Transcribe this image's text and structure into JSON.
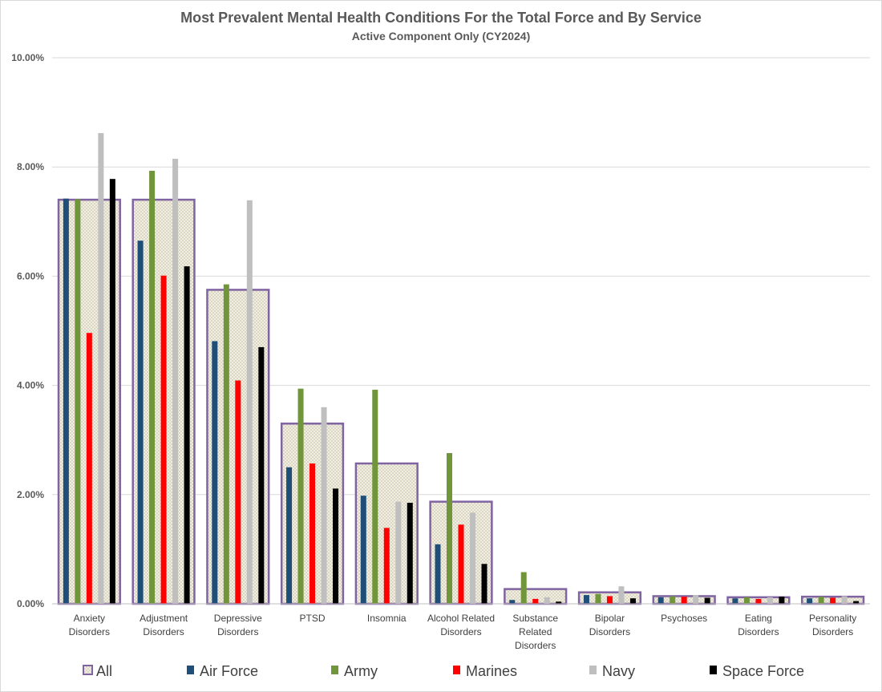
{
  "chart_data": {
    "type": "bar",
    "title": "Most Prevalent Mental Health Conditions For the Total Force and By Service",
    "subtitle": "Active Component Only (CY2024)",
    "categories": [
      [
        "Anxiety",
        "Disorders"
      ],
      [
        "Adjustment",
        "Disorders"
      ],
      [
        "Depressive",
        "Disorders"
      ],
      [
        "PTSD"
      ],
      [
        "Insomnia"
      ],
      [
        "Alcohol Related",
        "Disorders"
      ],
      [
        "Substance",
        "Related",
        "Disorders"
      ],
      [
        "Bipolar",
        "Disorders"
      ],
      [
        "Psychoses"
      ],
      [
        "Eating",
        "Disorders"
      ],
      [
        "Personality",
        "Disorders"
      ]
    ],
    "y_ticks": [
      "0.00%",
      "2.00%",
      "4.00%",
      "6.00%",
      "8.00%",
      "10.00%"
    ],
    "ylim": [
      0,
      10
    ],
    "grid": true,
    "legend_position": "bottom",
    "total": {
      "name": "All",
      "color": "#8064a2",
      "values": [
        7.4,
        7.4,
        5.75,
        3.3,
        2.57,
        1.87,
        0.27,
        0.21,
        0.14,
        0.12,
        0.13
      ]
    },
    "series": [
      {
        "name": "Air Force",
        "color": "#1f4e79",
        "values": [
          7.42,
          6.65,
          4.81,
          2.5,
          1.98,
          1.09,
          0.07,
          0.16,
          0.12,
          0.1,
          0.1
        ]
      },
      {
        "name": "Army",
        "color": "#70953a",
        "values": [
          7.41,
          7.93,
          5.85,
          3.94,
          3.92,
          2.76,
          0.58,
          0.18,
          0.14,
          0.12,
          0.13
        ]
      },
      {
        "name": "Marines",
        "color": "#ff0000",
        "values": [
          4.96,
          6.01,
          4.09,
          2.57,
          1.39,
          1.45,
          0.09,
          0.14,
          0.13,
          0.09,
          0.11
        ]
      },
      {
        "name": "Navy",
        "color": "#bfbfbf",
        "values": [
          8.62,
          8.15,
          7.39,
          3.6,
          1.87,
          1.67,
          0.12,
          0.32,
          0.16,
          0.12,
          0.14
        ]
      },
      {
        "name": "Space Force",
        "color": "#000000",
        "values": [
          7.78,
          6.18,
          4.7,
          2.11,
          1.85,
          0.73,
          0.04,
          0.1,
          0.11,
          0.13,
          0.05
        ]
      }
    ]
  }
}
